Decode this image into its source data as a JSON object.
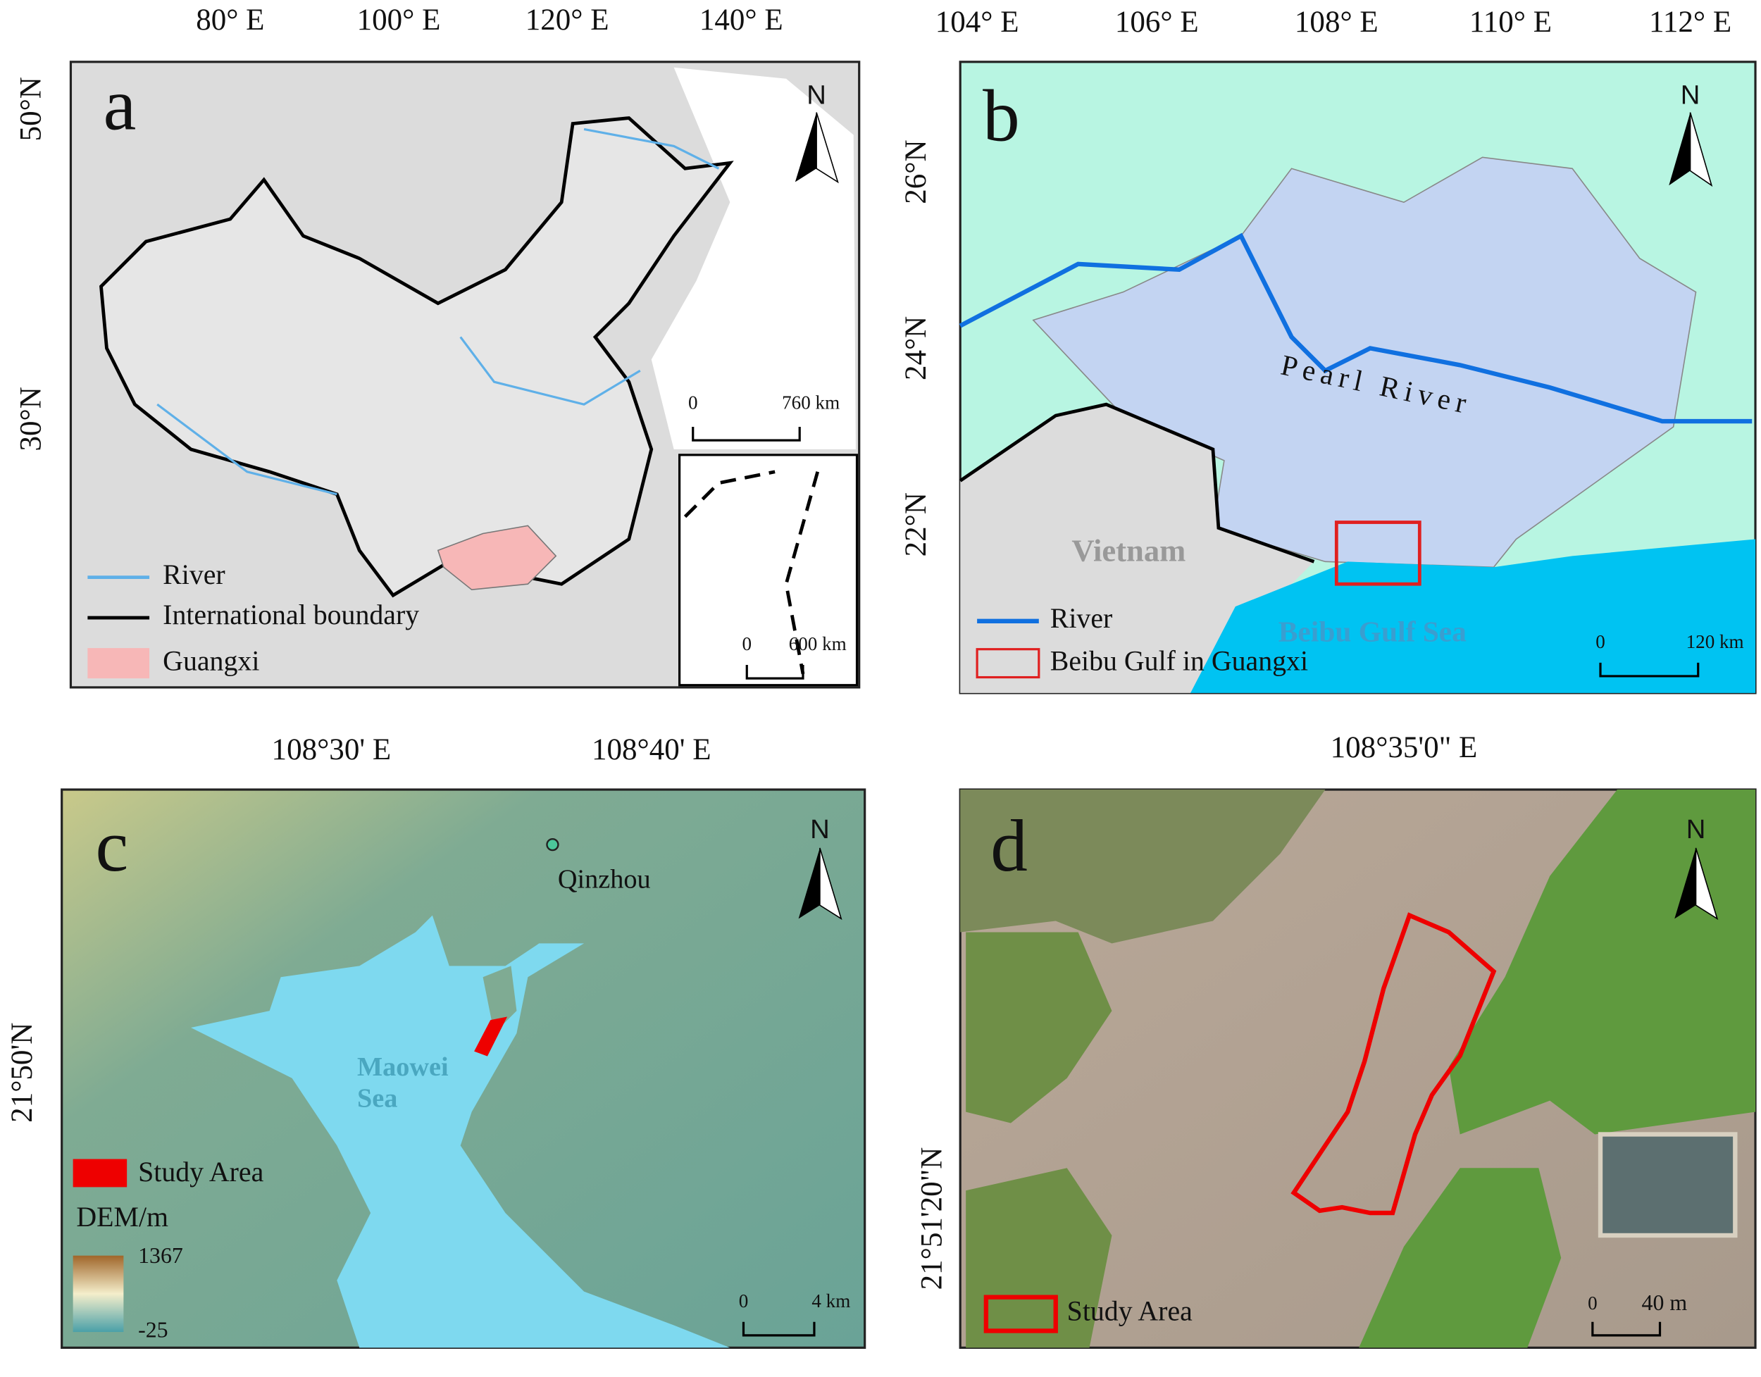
{
  "panels": [
    {
      "letter": "a",
      "top_ticks": [
        "80° E",
        "100° E",
        "120° E",
        "140° E"
      ],
      "left_ticks": [
        "50°N",
        "30°N"
      ],
      "north": "N",
      "scale": [
        "0",
        "760 km"
      ],
      "inset_scale": [
        "0",
        "600 km"
      ],
      "legend": [
        "River",
        "International boundary",
        "Guangxi"
      ]
    },
    {
      "letter": "b",
      "top_ticks": [
        "104° E",
        "106° E",
        "108° E",
        "110° E",
        "112° E"
      ],
      "left_ticks": [
        "26°N",
        "24°N",
        "22°N"
      ],
      "north": "N",
      "places": [
        "Pearl River",
        "Vietnam",
        "Beibu Gulf Sea"
      ],
      "scale": [
        "0",
        "120 km"
      ],
      "legend": [
        "River",
        "Beibu Gulf in Guangxi"
      ]
    },
    {
      "letter": "c",
      "top_ticks": [
        "108°30' E",
        "108°40' E"
      ],
      "left_ticks": [
        "21°50'N"
      ],
      "north": "N",
      "places": [
        "Qinzhou",
        "Maowei",
        "Sea"
      ],
      "scale": [
        "0",
        "4 km"
      ],
      "legend": [
        "Study Area",
        "DEM/m"
      ],
      "colorbar": [
        "1367",
        "-25"
      ]
    },
    {
      "letter": "d",
      "top_ticks": [
        "108°35'0\" E"
      ],
      "left_ticks": [
        "21°51'20\"N"
      ],
      "north": "N",
      "scale": [
        "0",
        "40 m"
      ],
      "legend": [
        "Study Area"
      ]
    }
  ]
}
